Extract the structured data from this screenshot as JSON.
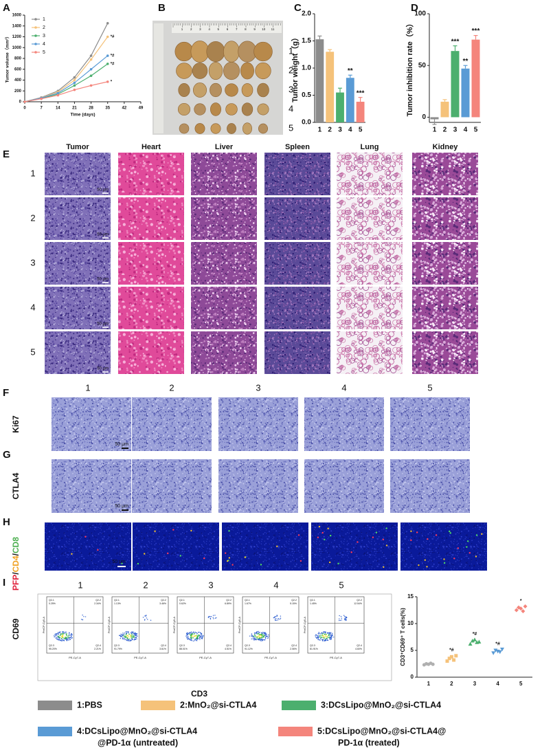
{
  "panel_letters": [
    "A",
    "B",
    "C",
    "D",
    "E",
    "F",
    "G",
    "H",
    "I"
  ],
  "chart_data": [
    {
      "type": "line",
      "y_label": "Tumor volume（mm³）",
      "x_label": "Time (days)",
      "x": [
        0,
        7,
        14,
        21,
        28,
        35
      ],
      "xlim": [
        0,
        49
      ],
      "xticks": [
        0,
        7,
        14,
        21,
        28,
        35,
        42,
        49
      ],
      "ylim": [
        0,
        1600
      ],
      "yticks": [
        0,
        200,
        400,
        600,
        800,
        1000,
        1200,
        1400,
        1600
      ],
      "legend": "upper left",
      "series": [
        {
          "name": "1",
          "color": "#8c8c8c",
          "values": [
            0,
            80,
            200,
            450,
            850,
            1450
          ]
        },
        {
          "name": "2",
          "color": "#f5c27a",
          "values": [
            0,
            75,
            180,
            400,
            780,
            1200
          ],
          "annotation": "*#"
        },
        {
          "name": "3",
          "color": "#4caf6e",
          "values": [
            0,
            60,
            140,
            300,
            480,
            700
          ],
          "annotation": "*#"
        },
        {
          "name": "4",
          "color": "#5a9bd5",
          "values": [
            0,
            70,
            160,
            350,
            600,
            850
          ],
          "annotation": "*#"
        },
        {
          "name": "5",
          "color": "#f4857c",
          "values": [
            0,
            55,
            120,
            220,
            300,
            370
          ],
          "annotation": "*"
        }
      ]
    },
    {
      "type": "bar",
      "y_label": "Tumor weight（g）",
      "categories": [
        "1",
        "2",
        "3",
        "4",
        "5"
      ],
      "values": [
        1.53,
        1.3,
        0.55,
        0.82,
        0.38
      ],
      "errors": [
        0.06,
        0.04,
        0.08,
        0.05,
        0.08
      ],
      "colors": [
        "#8c8c8c",
        "#f5c27a",
        "#4caf6e",
        "#5a9bd5",
        "#f4857c"
      ],
      "annotations": [
        null,
        null,
        null,
        "**",
        "***"
      ],
      "ylim": [
        0,
        2
      ],
      "yticks": [
        {
          "value": 0,
          "label": "0.0"
        },
        {
          "value": 0.5,
          "label": "0.5"
        },
        {
          "value": 1,
          "label": "1.0"
        },
        {
          "value": 1.5,
          "label": "1.5"
        },
        {
          "value": 2,
          "label": "2.0"
        }
      ]
    },
    {
      "type": "bar",
      "y_label": "Tumor inhibition rate（%）",
      "categories": [
        "1",
        "2",
        "3",
        "4",
        "5"
      ],
      "values": [
        -2,
        15,
        64,
        47,
        75
      ],
      "errors": [
        5,
        2,
        5,
        3,
        4
      ],
      "colors": [
        "#8c8c8c",
        "#f5c27a",
        "#4caf6e",
        "#5a9bd5",
        "#f4857c"
      ],
      "annotations": [
        null,
        null,
        "***",
        "**",
        "***"
      ],
      "ylim": [
        -5,
        100
      ],
      "yticks": [
        0,
        50,
        100
      ]
    },
    {
      "type": "dot",
      "y_label": "CD3⁺CD69⁺ T cells(%)",
      "categories": [
        "1",
        "2",
        "3",
        "4",
        "5"
      ],
      "ylim": [
        0,
        15
      ],
      "yticks": [
        0,
        5,
        10,
        15
      ],
      "annotations": [
        null,
        "*#",
        "*#",
        "*#",
        "*"
      ],
      "series": [
        {
          "name": "1",
          "color": "#b0b0b0",
          "values": [
            2.3,
            2.5,
            2.4,
            2.6,
            2.4
          ]
        },
        {
          "name": "2",
          "color": "#f5c27a",
          "values": [
            3.0,
            3.5,
            3.8,
            3.2,
            4.0
          ]
        },
        {
          "name": "3",
          "color": "#4caf6e",
          "values": [
            6.2,
            6.8,
            7.0,
            6.5,
            6.6
          ]
        },
        {
          "name": "4",
          "color": "#5a9bd5",
          "values": [
            4.5,
            5.0,
            4.8,
            4.7,
            5.2
          ]
        },
        {
          "name": "5",
          "color": "#f4857c",
          "values": [
            12.5,
            13.0,
            12.8,
            12.3,
            13.2
          ]
        }
      ]
    }
  ],
  "photo": {
    "row_labels": [
      "1",
      "2",
      "3",
      "4",
      "5"
    ],
    "ruler_labels": [
      "1",
      "2",
      "3",
      "4",
      "5",
      "6",
      "7",
      "8",
      "9",
      "10",
      "11"
    ]
  },
  "histology": {
    "columns": [
      "Tumor",
      "Heart",
      "Liver",
      "Spleen",
      "Lung",
      "Kidney"
    ],
    "rows": [
      "1",
      "2",
      "3",
      "4",
      "5"
    ],
    "scale_bar": "50 μm"
  },
  "ihc": {
    "columns": [
      "1",
      "2",
      "3",
      "4",
      "5"
    ],
    "rows": [
      "Ki67",
      "CTLA4"
    ],
    "scale_bar": "50 μm"
  },
  "fluorescence": {
    "label_parts": [
      "PFP",
      "/",
      "CD4",
      "/",
      "CD8"
    ],
    "label_colors": [
      "#e0203a",
      "#111111",
      "#f0a020",
      "#111111",
      "#4caf50"
    ],
    "scale_bar": "50 μm"
  },
  "flow": {
    "columns": [
      "1",
      "2",
      "3",
      "4",
      "5"
    ],
    "y_label": "CD69",
    "x_label": "CD3",
    "plot_y_label": "PerCP-Cy5-A",
    "plot_x_label": "PE-Cy7-A",
    "plots": [
      {
        "quadrants": [
          "Q2-1",
          "0.25%",
          "Q2-2",
          "2.34%",
          "Q2-3",
          "95.20%",
          "Q2-4",
          "2.21%"
        ]
      },
      {
        "quadrants": [
          "Q2-1",
          "1.13%",
          "Q2-2",
          "3.46%",
          "Q2-3",
          "91.79%",
          "Q2-4",
          "3.61%"
        ]
      },
      {
        "quadrants": [
          "Q2-1",
          "0.62%",
          "Q2-2",
          "6.89%",
          "Q2-3",
          "88.01%",
          "Q2-4",
          "4.51%"
        ]
      },
      {
        "quadrants": [
          "Q2-1",
          "1.67%",
          "Q2-2",
          "5.15%",
          "Q2-3",
          "91.12%",
          "Q2-4",
          "2.06%"
        ]
      },
      {
        "quadrants": [
          "Q2-1",
          "1.45%",
          "Q2-2",
          "12.54%",
          "Q2-3",
          "81.91%",
          "Q2-4",
          "4.60%"
        ]
      }
    ]
  },
  "legend": [
    {
      "lines": [
        "1:PBS"
      ],
      "color": "#8c8c8c"
    },
    {
      "lines": [
        "2:MnO₂@si-CTLA4"
      ],
      "color": "#f5c27a"
    },
    {
      "lines": [
        "3:DCsLipo@MnO₂@si-CTLA4"
      ],
      "color": "#4caf6e"
    },
    {
      "lines": [
        "4:DCsLipo@MnO₂@si-CTLA4",
        "@PD-1α (untreated)"
      ],
      "color": "#5a9bd5"
    },
    {
      "lines": [
        "5:DCsLipo@MnO₂@si-CTLA4@",
        "PD-1α (treated)"
      ],
      "color": "#f4857c"
    }
  ]
}
